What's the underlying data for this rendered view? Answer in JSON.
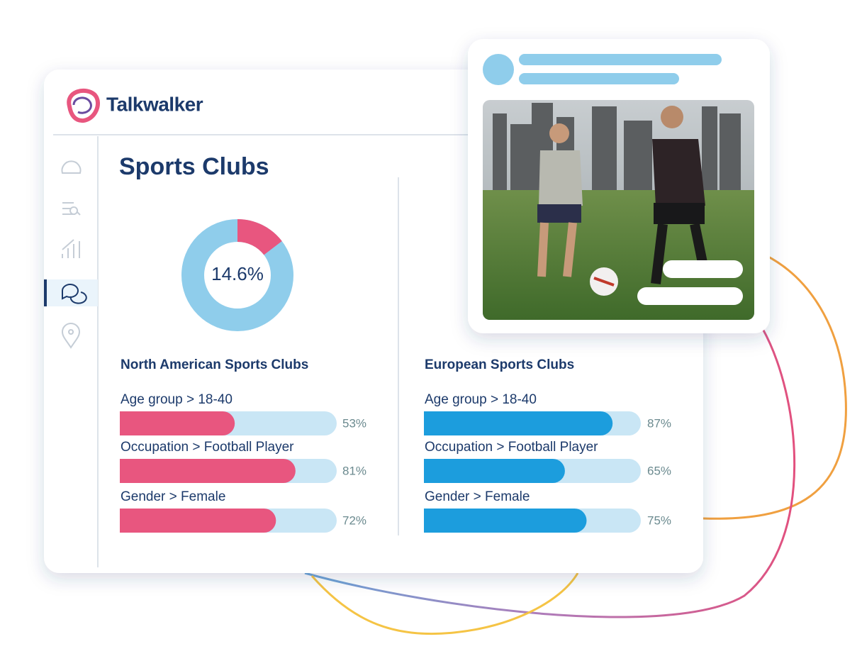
{
  "brand": "Talkwalker",
  "title": "Sports Clubs",
  "chart_data": [
    {
      "type": "donut",
      "values": [
        14.6
      ],
      "value_labels": [
        "14.6%"
      ],
      "color": "#e8567f",
      "track_color": "#8fcdeb"
    },
    {
      "type": "hbar",
      "title": "North American Sports Clubs",
      "categories": [
        "Age group > 18-40",
        "Occupation  > Football Player",
        "Gender > Female"
      ],
      "values": [
        53,
        81,
        72
      ],
      "value_labels": [
        "53%",
        "81%",
        "72%"
      ],
      "xlim": [
        0,
        100
      ],
      "color": "#e8567f",
      "track_color": "#c9e6f5"
    },
    {
      "type": "hbar",
      "title": "European Sports Clubs",
      "categories": [
        "Age group > 18-40",
        "Occupation  > Football Player",
        "Gender > Female"
      ],
      "values": [
        87,
        65,
        75
      ],
      "value_labels": [
        "87%",
        "65%",
        "75%"
      ],
      "xlim": [
        0,
        100
      ],
      "color": "#1c9ddd",
      "track_color": "#c9e6f5"
    }
  ]
}
